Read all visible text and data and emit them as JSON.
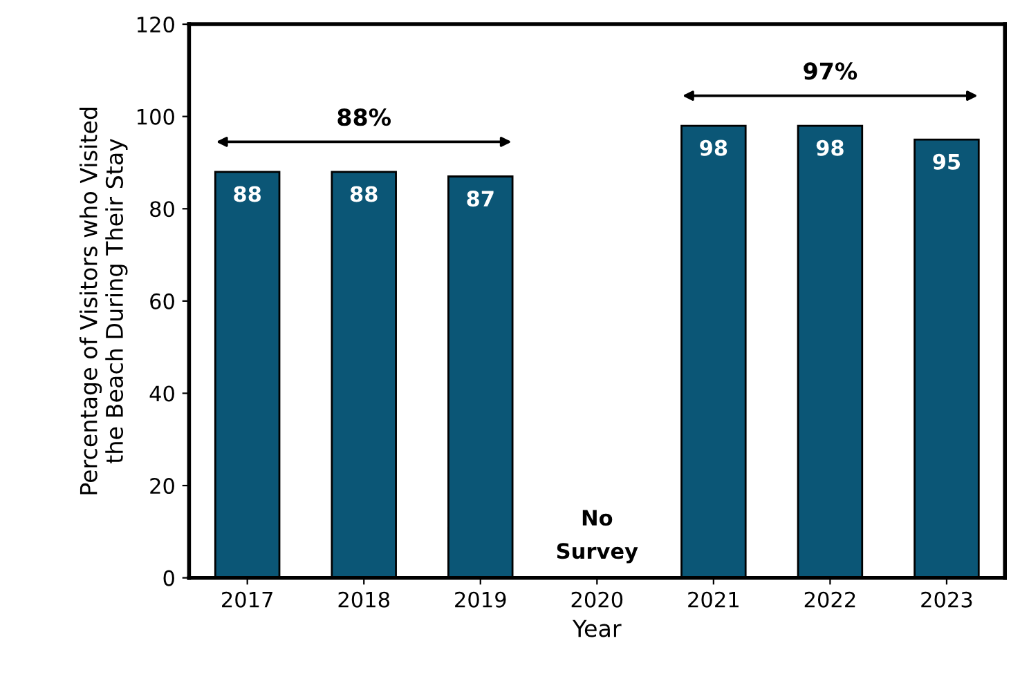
{
  "chart_data": {
    "type": "bar",
    "xlabel": "Year",
    "ylabel": "Percentage of Visitors who Visited\nthe Beach During Their Stay",
    "categories": [
      "2017",
      "2018",
      "2019",
      "2020",
      "2021",
      "2022",
      "2023"
    ],
    "values": [
      88,
      88,
      87,
      null,
      98,
      98,
      95
    ],
    "color": "#0b5676",
    "data_labels": true,
    "ylim": [
      0,
      120
    ],
    "yticks": [
      0,
      20,
      40,
      60,
      80,
      100,
      120
    ],
    "grid": false,
    "legend": false,
    "annotations": [
      "88%",
      "97%",
      "No\nSurvey"
    ]
  }
}
